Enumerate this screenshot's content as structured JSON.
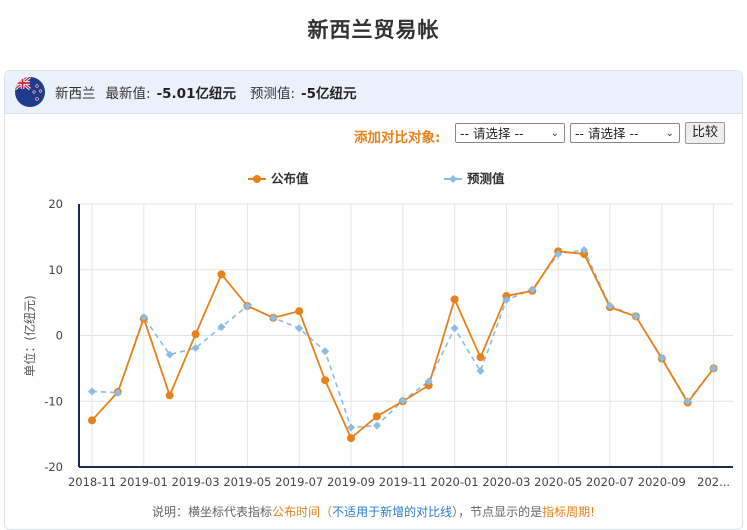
{
  "title": "新西兰贸易帐",
  "header": {
    "country": "新西兰",
    "latest_label": "最新值:",
    "latest_value": "-5.01亿纽元",
    "forecast_label": "预测值:",
    "forecast_value": "-5亿纽元"
  },
  "compare": {
    "label": "添加对比对象:",
    "select1": "-- 请选择 --",
    "select2": "-- 请选择 --",
    "button": "比较"
  },
  "note": {
    "prefix": "说明：横坐标代表指标",
    "time_text": "公布时间",
    "paren_open": "（",
    "na_text": "不适用于新增的对比线",
    "paren_close": "），节点显示的是",
    "period_text": "指标周期",
    "suffix": "!"
  },
  "colors": {
    "actual": "#e8811a",
    "forecast": "#8bbde6",
    "axis": "#1d2a4f",
    "grid": "#e3e3e3"
  },
  "chart_data": {
    "type": "line",
    "ylabel": "单位：(亿纽元)",
    "ylim": [
      -20,
      20
    ],
    "yticks": [
      20,
      10,
      0,
      -10,
      -20
    ],
    "x": [
      "2018-11",
      "2018-12",
      "2019-01",
      "2019-02",
      "2019-03",
      "2019-04",
      "2019-05",
      "2019-06",
      "2019-07",
      "2019-08",
      "2019-09",
      "2019-10",
      "2019-11",
      "2019-12",
      "2020-01",
      "2020-02",
      "2020-03",
      "2020-04",
      "2020-05",
      "2020-06",
      "2020-07",
      "2020-08",
      "2020-09",
      "2020-10",
      "2020-11"
    ],
    "xtick_labels": [
      "2018-11",
      "2019-01",
      "2019-03",
      "2019-05",
      "2019-07",
      "2019-09",
      "2019-11",
      "2020-01",
      "2020-03",
      "2020-05",
      "2020-07",
      "2020-09",
      "202..."
    ],
    "legend": [
      "公布值",
      "预测值"
    ],
    "series": [
      {
        "name": "公布值",
        "values": [
          -12.9,
          -8.6,
          2.6,
          -9.1,
          0.2,
          9.3,
          4.5,
          2.7,
          3.7,
          -6.8,
          -15.6,
          -12.3,
          -10.0,
          -7.6,
          5.5,
          -3.3,
          6.0,
          6.8,
          12.8,
          12.4,
          4.3,
          2.9,
          -3.5,
          -10.2,
          -5.0
        ]
      },
      {
        "name": "预测值",
        "values": [
          -8.5,
          -8.7,
          2.8,
          -2.9,
          -1.9,
          1.3,
          4.5,
          2.7,
          1.1,
          -2.4,
          -14.0,
          -13.7,
          -9.9,
          -7.0,
          1.1,
          -5.4,
          5.4,
          7.0,
          12.4,
          13.0,
          4.5,
          2.9,
          -3.4,
          -10.0,
          -5.0
        ]
      }
    ]
  }
}
